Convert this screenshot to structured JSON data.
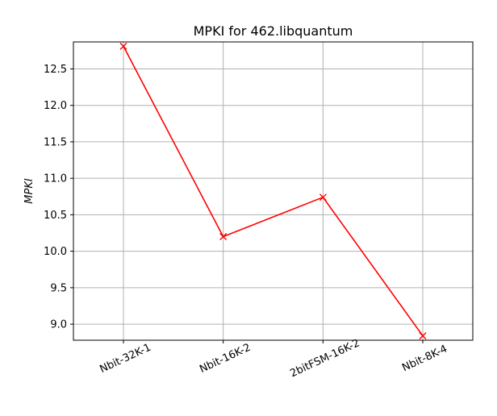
{
  "chart_data": {
    "type": "line",
    "title": "MPKI for 462.libquantum",
    "xlabel": "",
    "ylabel": "MPKI",
    "categories": [
      "Nbit-32K-1",
      "Nbit-16K-2",
      "2bitFSM-16K-2",
      "Nbit-8K-4"
    ],
    "series": [
      {
        "values": [
          12.81,
          10.2,
          10.74,
          8.84
        ],
        "color": "#ff0000",
        "marker": "x"
      }
    ],
    "ylim": [
      8.78,
      12.87
    ],
    "yticks": [
      "9.0",
      "9.5",
      "10.0",
      "10.5",
      "11.0",
      "11.5",
      "12.0",
      "12.5"
    ],
    "grid": true,
    "xtick_rotation": 25
  }
}
